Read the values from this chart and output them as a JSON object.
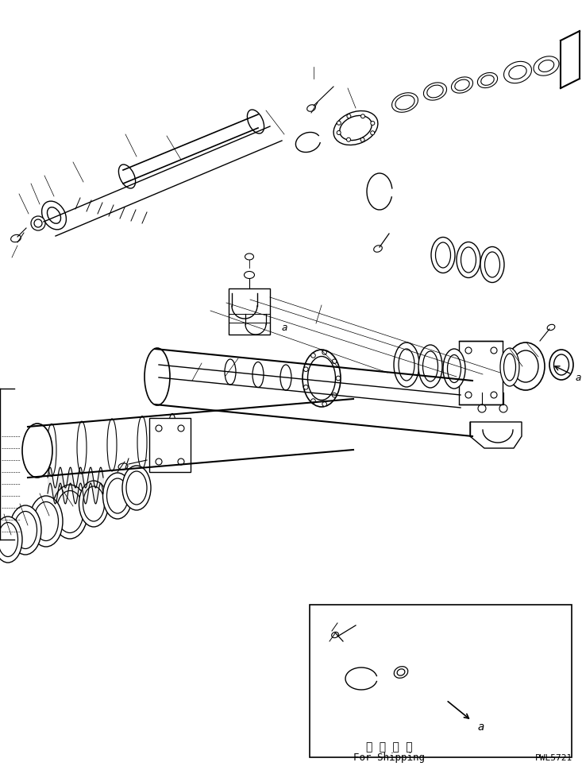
{
  "bg_color": "#ffffff",
  "line_color": "#000000",
  "figure_width": 7.33,
  "figure_height": 9.7,
  "dpi": 100,
  "bottom_text1": "運 携 部 品",
  "bottom_text2": "For Shipping",
  "part_number": "PWL5721",
  "label_a": "a"
}
